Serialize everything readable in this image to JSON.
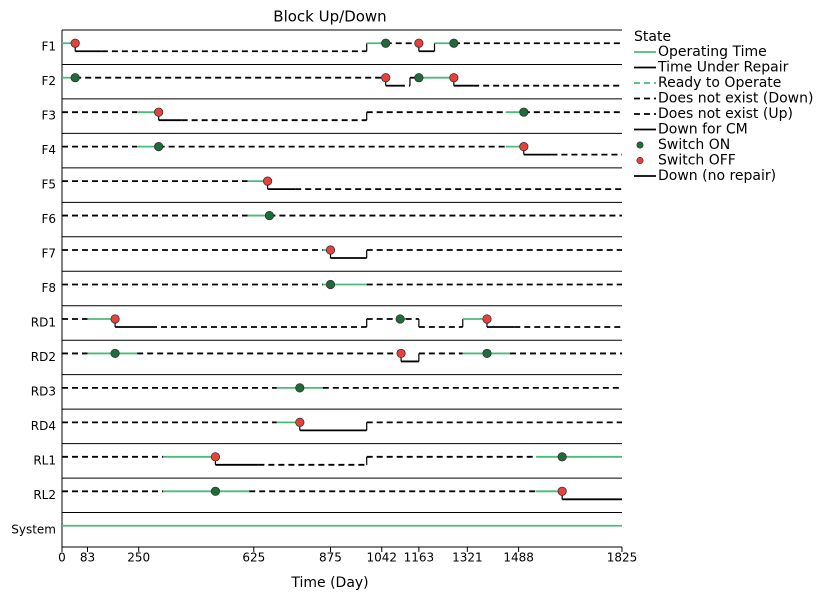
{
  "chart_data": {
    "type": "block-updown",
    "title": "Block Up/Down",
    "x_label": "Time (Day)",
    "xlim": [
      0,
      1825
    ],
    "xticks": [
      0,
      83,
      250,
      625,
      875,
      1042,
      1163,
      1321,
      1488,
      1825
    ],
    "legend_title": "State",
    "legend_position": "right",
    "series": [
      {
        "name": "Operating Time",
        "color": "#4cbb7a",
        "style": "solid"
      },
      {
        "name": "Time Under Repair",
        "color": "#000000",
        "style": "solid"
      },
      {
        "name": "Ready to Operate",
        "color": "#4cbb7a",
        "style": "dashed"
      },
      {
        "name": "Does not exist (Down)",
        "color": "#000000",
        "style": "dashed"
      },
      {
        "name": "Does not exist (Up)",
        "color": "#000000",
        "style": "dashed"
      },
      {
        "name": "Down for CM",
        "color": "#000000",
        "style": "solid"
      },
      {
        "name": "Switch ON",
        "color": "#1f6b3a",
        "style": "dot"
      },
      {
        "name": "Switch OFF",
        "color": "#e8413c",
        "style": "dot"
      },
      {
        "name": "Down (no repair)",
        "color": "#000000",
        "style": "solid"
      }
    ],
    "rows": [
      {
        "name": "F1",
        "segments": [
          [
            0,
            43,
            0
          ],
          [
            43,
            130,
            1
          ],
          [
            130,
            993,
            3
          ],
          [
            993,
            1055,
            0
          ],
          [
            1055,
            1163,
            4
          ],
          [
            1163,
            1214,
            1
          ],
          [
            1214,
            1277,
            0
          ],
          [
            1277,
            1825,
            4
          ]
        ],
        "events": [
          [
            43,
            7
          ],
          [
            1055,
            6
          ],
          [
            1163,
            7
          ],
          [
            1277,
            6
          ]
        ]
      },
      {
        "name": "F2",
        "segments": [
          [
            0,
            43,
            0
          ],
          [
            43,
            1055,
            4
          ],
          [
            1055,
            1098,
            1
          ],
          [
            1098,
            1134,
            3
          ],
          [
            1134,
            1163,
            4
          ],
          [
            1163,
            1277,
            0
          ],
          [
            1277,
            1340,
            1
          ],
          [
            1340,
            1825,
            3
          ]
        ],
        "events": [
          [
            43,
            6
          ],
          [
            1055,
            7
          ],
          [
            1163,
            6
          ],
          [
            1277,
            7
          ]
        ]
      },
      {
        "name": "F3",
        "segments": [
          [
            0,
            245,
            4
          ],
          [
            245,
            315,
            0
          ],
          [
            315,
            390,
            1
          ],
          [
            390,
            993,
            3
          ],
          [
            993,
            1446,
            4
          ],
          [
            1446,
            1505,
            0
          ],
          [
            1505,
            1825,
            4
          ]
        ],
        "events": [
          [
            315,
            7
          ],
          [
            1505,
            6
          ]
        ]
      },
      {
        "name": "F4",
        "segments": [
          [
            0,
            245,
            4
          ],
          [
            245,
            315,
            0
          ],
          [
            315,
            1446,
            4
          ],
          [
            1446,
            1505,
            0
          ],
          [
            1505,
            1595,
            1
          ],
          [
            1595,
            1825,
            3
          ]
        ],
        "events": [
          [
            315,
            6
          ],
          [
            1505,
            7
          ]
        ]
      },
      {
        "name": "F5",
        "segments": [
          [
            0,
            605,
            4
          ],
          [
            605,
            670,
            0
          ],
          [
            670,
            760,
            1
          ],
          [
            760,
            1825,
            3
          ]
        ],
        "events": [
          [
            670,
            7
          ]
        ]
      },
      {
        "name": "F6",
        "segments": [
          [
            0,
            605,
            4
          ],
          [
            605,
            676,
            0
          ],
          [
            676,
            1825,
            4
          ]
        ],
        "events": [
          [
            676,
            6
          ]
        ]
      },
      {
        "name": "F7",
        "segments": [
          [
            0,
            850,
            4
          ],
          [
            850,
            875,
            0
          ],
          [
            875,
            993,
            1
          ],
          [
            993,
            1825,
            4
          ]
        ],
        "events": [
          [
            875,
            7
          ]
        ]
      },
      {
        "name": "F8",
        "segments": [
          [
            0,
            850,
            4
          ],
          [
            850,
            993,
            0
          ],
          [
            993,
            1825,
            4
          ]
        ],
        "events": [
          [
            875,
            6
          ]
        ]
      },
      {
        "name": "RD1",
        "segments": [
          [
            0,
            83,
            4
          ],
          [
            83,
            173,
            0
          ],
          [
            173,
            290,
            1
          ],
          [
            290,
            993,
            3
          ],
          [
            993,
            1090,
            4
          ],
          [
            1090,
            1120,
            0
          ],
          [
            1120,
            1163,
            4
          ],
          [
            1163,
            1306,
            3
          ],
          [
            1306,
            1385,
            0
          ],
          [
            1385,
            1474,
            1
          ],
          [
            1474,
            1825,
            3
          ]
        ],
        "events": [
          [
            173,
            7
          ],
          [
            1102,
            6
          ],
          [
            1385,
            7
          ]
        ]
      },
      {
        "name": "RD2",
        "segments": [
          [
            0,
            83,
            4
          ],
          [
            83,
            245,
            0
          ],
          [
            245,
            1105,
            4
          ],
          [
            1105,
            1163,
            1
          ],
          [
            1163,
            1306,
            4
          ],
          [
            1306,
            1460,
            0
          ],
          [
            1460,
            1825,
            4
          ]
        ],
        "events": [
          [
            173,
            6
          ],
          [
            1105,
            7
          ],
          [
            1385,
            6
          ]
        ]
      },
      {
        "name": "RD3",
        "segments": [
          [
            0,
            700,
            4
          ],
          [
            700,
            850,
            0
          ],
          [
            850,
            1825,
            4
          ]
        ],
        "events": [
          [
            775,
            6
          ]
        ]
      },
      {
        "name": "RD4",
        "segments": [
          [
            0,
            700,
            4
          ],
          [
            700,
            775,
            0
          ],
          [
            775,
            993,
            1
          ],
          [
            993,
            1825,
            4
          ]
        ],
        "events": [
          [
            775,
            7
          ]
        ]
      },
      {
        "name": "RL1",
        "segments": [
          [
            0,
            330,
            4
          ],
          [
            330,
            500,
            0
          ],
          [
            500,
            640,
            1
          ],
          [
            640,
            993,
            3
          ],
          [
            993,
            1545,
            4
          ],
          [
            1545,
            1825,
            0
          ]
        ],
        "events": [
          [
            500,
            7
          ],
          [
            1630,
            6
          ]
        ]
      },
      {
        "name": "RL2",
        "segments": [
          [
            0,
            330,
            4
          ],
          [
            330,
            610,
            0
          ],
          [
            610,
            1545,
            4
          ],
          [
            1545,
            1630,
            0
          ],
          [
            1630,
            1825,
            1
          ]
        ],
        "events": [
          [
            500,
            6
          ],
          [
            1630,
            7
          ]
        ]
      },
      {
        "name": "System",
        "segments": [
          [
            0,
            1825,
            0
          ]
        ],
        "events": []
      }
    ]
  }
}
